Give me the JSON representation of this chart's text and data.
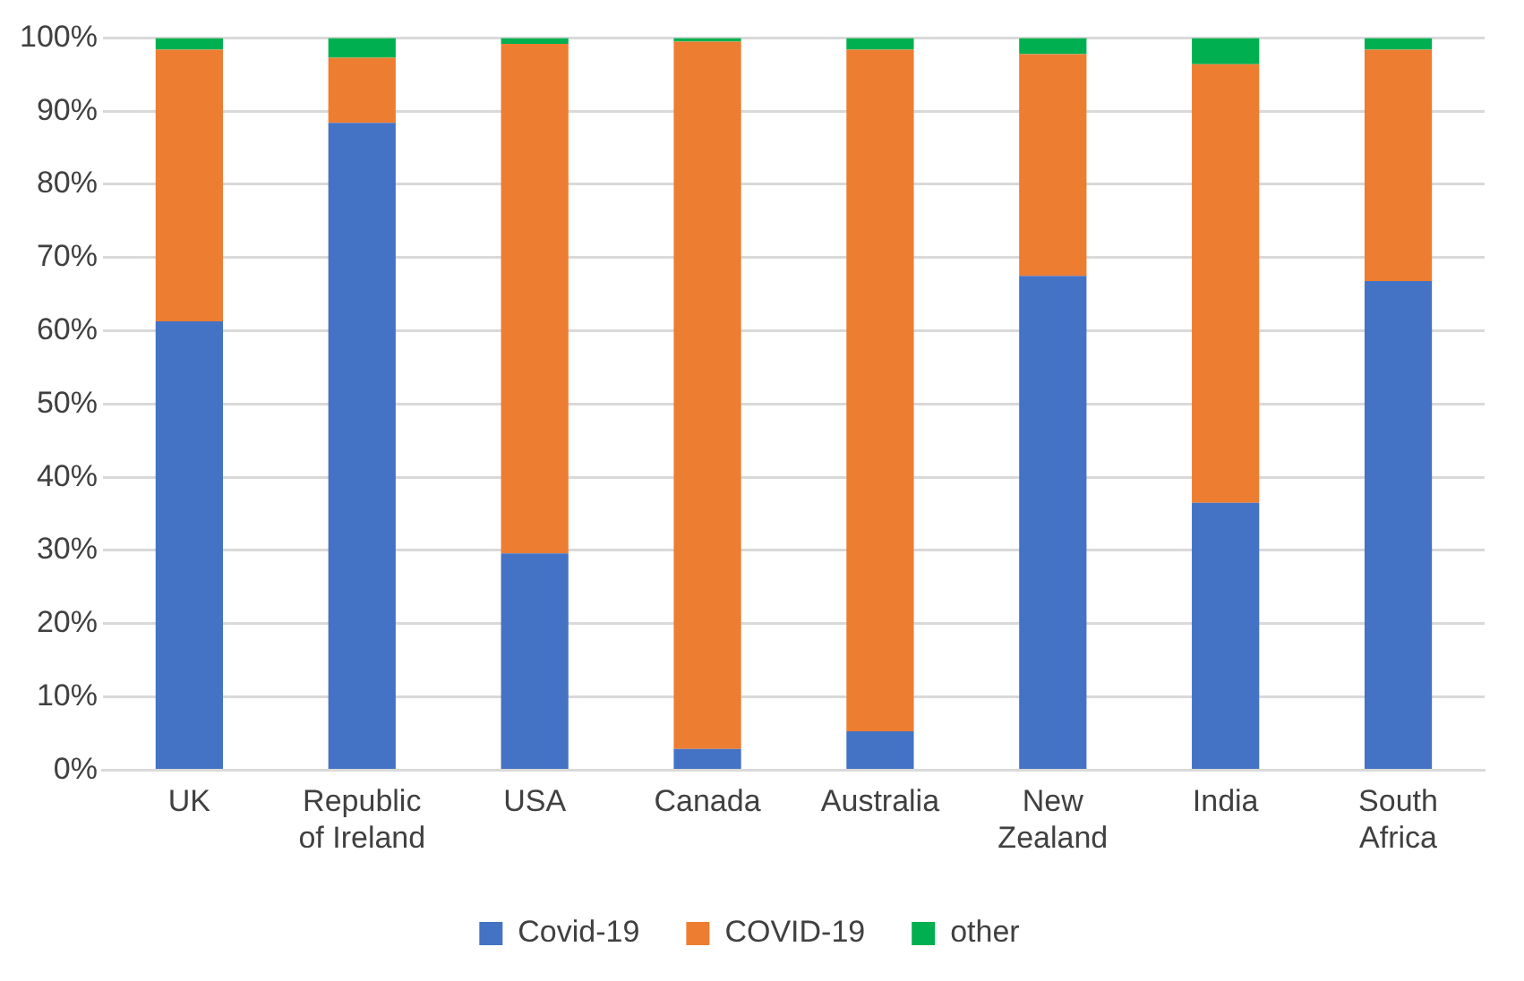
{
  "chart_data": {
    "type": "bar",
    "stacked": true,
    "categories": [
      "UK",
      "Republic of Ireland",
      "USA",
      "Canada",
      "Australia",
      "New Zealand",
      "India",
      "South Africa"
    ],
    "series": [
      {
        "name": "Covid-19",
        "color": "#4472c4",
        "values": [
          61.3,
          88.4,
          29.6,
          2.9,
          5.3,
          67.5,
          36.5,
          66.8
        ]
      },
      {
        "name": "COVID-19",
        "color": "#ed7d31",
        "values": [
          37.1,
          8.9,
          69.6,
          96.6,
          93.1,
          30.3,
          59.9,
          31.6
        ]
      },
      {
        "name": "other",
        "color": "#00b050",
        "values": [
          1.6,
          2.7,
          0.8,
          0.5,
          1.6,
          2.2,
          3.6,
          1.6
        ]
      }
    ],
    "ylim": [
      0,
      100
    ],
    "yticks": [
      {
        "value": 0,
        "label": "0%"
      },
      {
        "value": 10,
        "label": "10%"
      },
      {
        "value": 20,
        "label": "20%"
      },
      {
        "value": 30,
        "label": "30%"
      },
      {
        "value": 40,
        "label": "40%"
      },
      {
        "value": 50,
        "label": "50%"
      },
      {
        "value": 60,
        "label": "60%"
      },
      {
        "value": 70,
        "label": "70%"
      },
      {
        "value": 80,
        "label": "80%"
      },
      {
        "value": 90,
        "label": "90%"
      },
      {
        "value": 100,
        "label": "100%"
      }
    ],
    "grid": "y",
    "legend": "bottom"
  }
}
